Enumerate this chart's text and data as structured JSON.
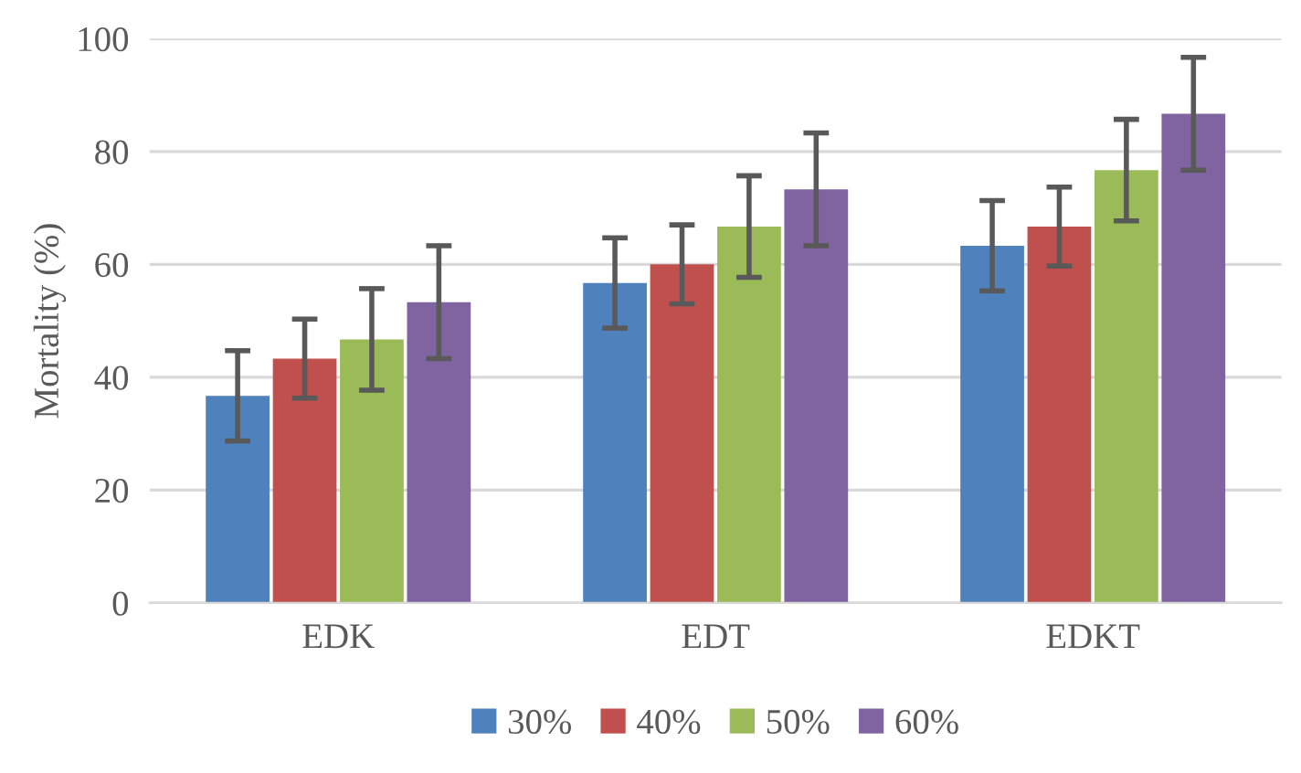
{
  "chart_data": {
    "type": "bar",
    "ylabel": "Mortality (%)",
    "categories": [
      "EDK",
      "EDT",
      "EDKT"
    ],
    "series": [
      {
        "name": "30%",
        "color": "#4f81bd",
        "values": [
          36.7,
          56.7,
          63.3
        ],
        "errors": [
          8,
          8,
          8
        ]
      },
      {
        "name": "40%",
        "color": "#c0504d",
        "values": [
          43.3,
          60,
          66.7
        ],
        "errors": [
          7,
          7,
          7
        ]
      },
      {
        "name": "50%",
        "color": "#9bbb59",
        "values": [
          46.7,
          66.7,
          76.7
        ],
        "errors": [
          9,
          9,
          9
        ]
      },
      {
        "name": "60%",
        "color": "#8064a2",
        "values": [
          53.3,
          73.3,
          86.7
        ],
        "errors": [
          10,
          10,
          10
        ]
      }
    ],
    "ylim": [
      0,
      100
    ],
    "yticks": [
      0,
      20,
      40,
      60,
      80,
      100
    ],
    "grid": "y",
    "legend": "bottom"
  }
}
